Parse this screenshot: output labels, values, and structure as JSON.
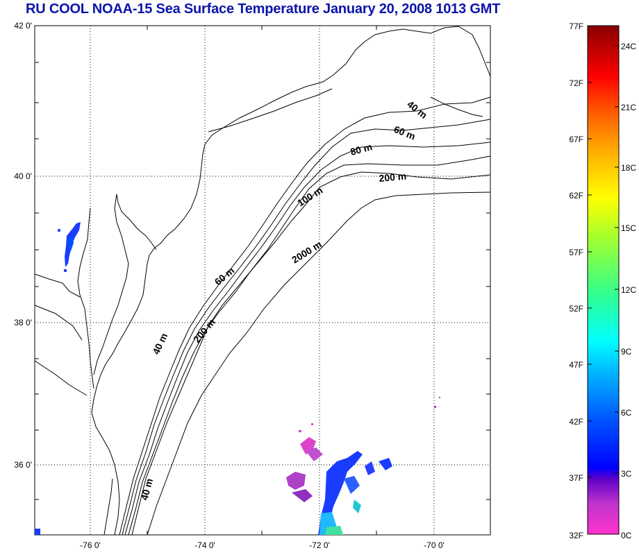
{
  "title": "RU COOL  NOAA-15 Sea Surface Temperature January 20, 2008 1013 GMT",
  "map": {
    "lat_labels": [
      "42 0'",
      "40 0'",
      "38 0'",
      "36 0'"
    ],
    "lon_labels": [
      "-76 0'",
      "-74 0'",
      "-72 0'",
      "-70 0'"
    ],
    "contours": [
      "40 m",
      "60 m",
      "80 m",
      "200 m",
      "100 m",
      "2000 m",
      "60 m",
      "200 m",
      "40 m",
      "40 m"
    ]
  },
  "colorbar": {
    "fahrenheit": [
      "77F",
      "72F",
      "67F",
      "62F",
      "57F",
      "52F",
      "47F",
      "42F",
      "37F",
      "32F"
    ],
    "celsius": [
      "24C",
      "21C",
      "18C",
      "15C",
      "12C",
      "9C",
      "6C",
      "3C",
      "0C"
    ],
    "colors": [
      "#ff33cc",
      "#a033d0",
      "#5a00c8",
      "#0000ff",
      "#0060ff",
      "#00b0ff",
      "#00ffff",
      "#30ff90",
      "#a0ff30",
      "#ffff00",
      "#ffa000",
      "#ff5000",
      "#ff0000",
      "#c00000",
      "#880000"
    ]
  }
}
